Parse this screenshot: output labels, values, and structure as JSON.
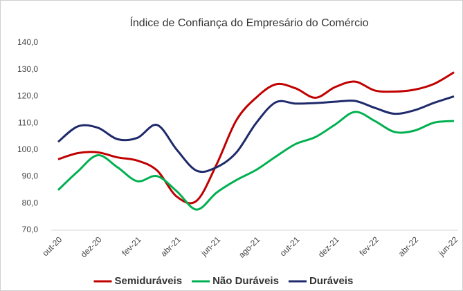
{
  "chart_data": {
    "type": "line",
    "title": "Índice de Confiança do Empresário do Comércio",
    "categories": [
      "out-20",
      null,
      "dez-20",
      null,
      "fev-21",
      null,
      "abr-21",
      null,
      "jun-21",
      null,
      "ago-21",
      null,
      "out-21",
      null,
      "dez-21",
      null,
      "fev-22",
      null,
      "abr-22",
      null,
      "jun-22"
    ],
    "series": [
      {
        "name": "Semiduráveis",
        "color": "#c00000",
        "values": [
          96.5,
          98.8,
          99.1,
          97.2,
          96,
          92.3,
          82.5,
          81,
          94.5,
          111,
          119.5,
          124.5,
          123,
          119.5,
          123.5,
          125.5,
          122.2,
          121.8,
          122.5,
          124.7,
          129
        ]
      },
      {
        "name": "Não Duráveis",
        "color": "#00b050",
        "values": [
          85,
          92,
          98,
          93.5,
          88.3,
          90.2,
          84.5,
          77.7,
          84,
          88.7,
          92.5,
          97.5,
          102.2,
          104.8,
          109.5,
          114.2,
          110.8,
          106.7,
          107.2,
          110.2,
          110.8
        ]
      },
      {
        "name": "Duráveis",
        "color": "#1f2a6b",
        "values": [
          103,
          108.8,
          108.3,
          104,
          104.5,
          109.3,
          100,
          92.2,
          93.5,
          99,
          110,
          117.8,
          117.3,
          117.5,
          118,
          118.3,
          115.7,
          113.5,
          114.8,
          117.6,
          120
        ]
      }
    ],
    "ylim": [
      70,
      140
    ],
    "yticks": [
      {
        "value": 70,
        "label": "70,0"
      },
      {
        "value": 80,
        "label": "80,0"
      },
      {
        "value": 90,
        "label": "90,0"
      },
      {
        "value": 100,
        "label": "100,0"
      },
      {
        "value": 110,
        "label": "110,0"
      },
      {
        "value": 120,
        "label": "120,0"
      },
      {
        "value": 130,
        "label": "130,0"
      },
      {
        "value": 140,
        "label": "140,0"
      }
    ],
    "grid": false,
    "legend": "bottom"
  }
}
